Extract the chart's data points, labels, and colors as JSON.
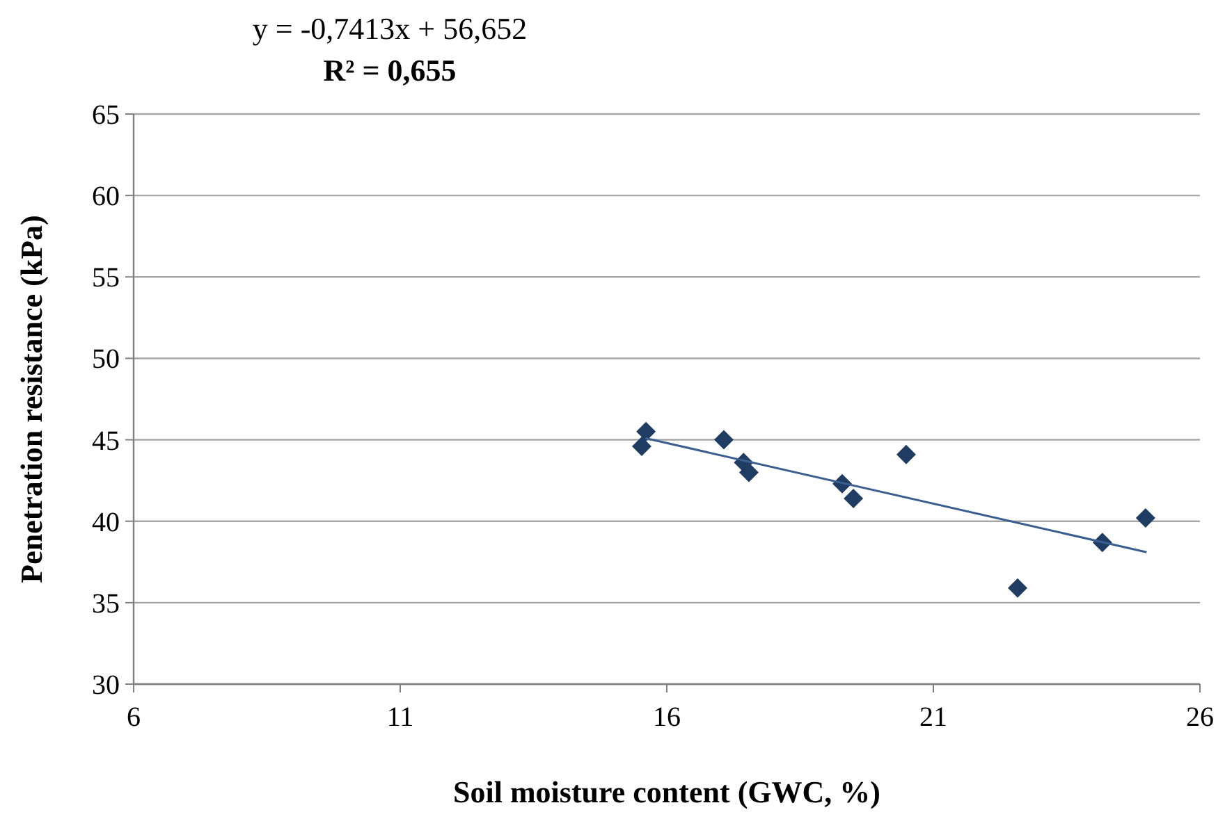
{
  "chart_data": {
    "type": "scatter",
    "xlabel": "Soil moisture content (GWC,  %)",
    "ylabel": "Penetration resistance (kPa)",
    "annotations": [
      "y = -0,7413x + 56,652",
      "R² = 0,655"
    ],
    "xlim": [
      6,
      26
    ],
    "xticks": [
      6,
      11,
      16,
      21,
      26
    ],
    "ylim": [
      30,
      65
    ],
    "yticks": [
      30,
      35,
      40,
      45,
      50,
      55,
      60,
      65
    ],
    "grid": "y",
    "marker": "diamond",
    "series": [
      {
        "type": "scatter",
        "color": "#1f3d63",
        "x": [
          15.53,
          15.61,
          17.07,
          17.44,
          17.54,
          19.29,
          19.5,
          20.49,
          22.58,
          24.17,
          24.98
        ],
        "values": [
          44.6,
          45.5,
          45.0,
          43.6,
          43.0,
          42.3,
          41.4,
          44.1,
          35.9,
          38.7,
          40.2
        ]
      },
      {
        "type": "line",
        "color": "#3a5f8f",
        "x": [
          15.6,
          25
        ],
        "values": [
          45.1,
          38.1
        ],
        "marker": "none",
        "line_style": "solid"
      }
    ]
  }
}
